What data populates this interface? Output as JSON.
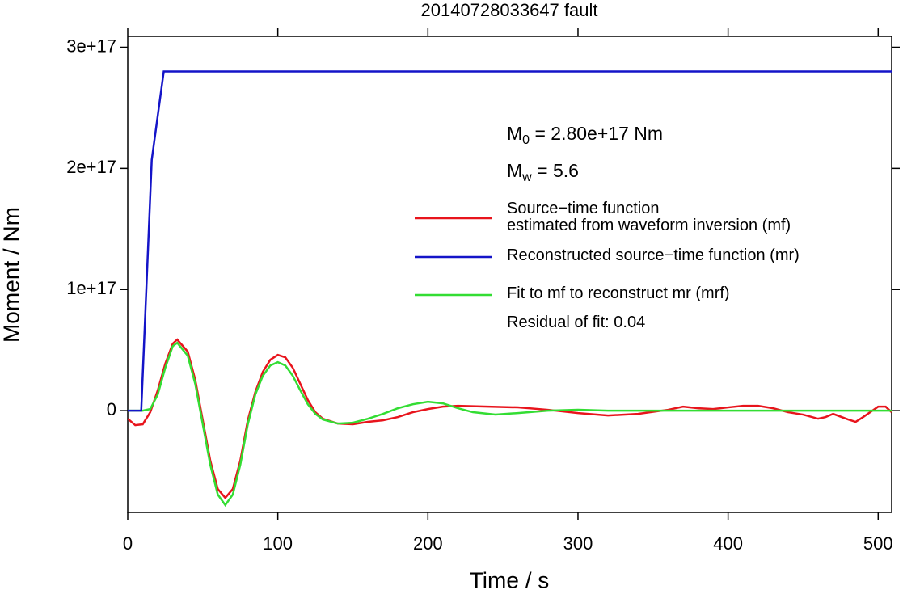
{
  "chart_data": {
    "type": "line",
    "title": "20140728033647 fault",
    "x_label": "Time / s",
    "y_label": "Moment / Nm",
    "xlim": [
      0,
      509
    ],
    "xticks": [
      0,
      100,
      200,
      300,
      400,
      500
    ],
    "ylim": [
      -8.4e+16,
      3.09e+17
    ],
    "yticks": [
      0,
      {
        "value": 1e+17,
        "label": "1e+17"
      },
      {
        "value": 2e+17,
        "label": "2e+17"
      },
      {
        "value": 3e+17,
        "label": "3e+17"
      }
    ],
    "legend": "right",
    "annotations": [
      {
        "parts": [
          "M",
          "0",
          " = 2.80e+17 Nm"
        ]
      },
      {
        "parts": [
          "M",
          "w",
          " = 5.6"
        ]
      },
      {
        "parts": [
          "Residual of fit: 0.04"
        ]
      }
    ],
    "series": [
      {
        "name": "Source−time function\nestimated from waveform inversion (mf)",
        "color": "#e8141c",
        "x": [
          0,
          5,
          10,
          15,
          20,
          25,
          30,
          33,
          40,
          45,
          50,
          55,
          60,
          65,
          70,
          75,
          80,
          85,
          90,
          95,
          100,
          105,
          110,
          115,
          120,
          125,
          130,
          140,
          150,
          160,
          170,
          180,
          190,
          200,
          210,
          220,
          240,
          260,
          280,
          300,
          320,
          340,
          360,
          370,
          380,
          390,
          400,
          410,
          420,
          430,
          440,
          450,
          460,
          465,
          470,
          480,
          485,
          490,
          500,
          505,
          509
        ],
        "values": [
          -6700000000000000.0,
          -1.2e+16,
          -1.13e+16,
          -1300000000000000.0,
          1.67e+16,
          3.87e+16,
          5.53e+16,
          5.87e+16,
          4.87e+16,
          2.53e+16,
          -8000000000000000.0,
          -4.13e+16,
          -6.47e+16,
          -7.2e+16,
          -6.47e+16,
          -4.13e+16,
          -8000000000000000.0,
          1.53e+16,
          3.2e+16,
          4.2e+16,
          4.6e+16,
          4.4e+16,
          3.53e+16,
          2.2e+16,
          8700000000000000.0,
          -1300000000000000.0,
          -6700000000000000.0,
          -1.07e+16,
          -1.13e+16,
          -9300000000000000.0,
          -8000000000000000.0,
          -5300000000000000.0,
          -1300000000000000.0,
          1300000000000000.0,
          3300000000000000.0,
          4000000000000000.0,
          3300000000000000.0,
          2700000000000000.0,
          700000000000000.0,
          -2000000000000000.0,
          -4000000000000000.0,
          -2700000000000000.0,
          700000000000000.0,
          3300000000000000.0,
          2000000000000000.0,
          1300000000000000.0,
          2700000000000000.0,
          4000000000000000.0,
          4000000000000000.0,
          2000000000000000.0,
          -1300000000000000.0,
          -3300000000000000.0,
          -6700000000000000.0,
          -5300000000000000.0,
          -2700000000000000.0,
          -7300000000000000.0,
          -9300000000000000.0,
          -5300000000000000.0,
          3300000000000000.0,
          3300000000000000.0,
          -1300000000000000.0
        ]
      },
      {
        "name": "Reconstructed source−time function (mr)",
        "color": "#1414c8",
        "x": [
          0,
          9,
          16,
          24,
          509
        ],
        "values": [
          0,
          0,
          2.07e+17,
          2.8e+17,
          2.8e+17
        ]
      },
      {
        "name": "Fit to mf to reconstruct mr (mrf)",
        "color": "#33dd33",
        "x": [
          0,
          10,
          15,
          20,
          25,
          30,
          33,
          40,
          45,
          50,
          55,
          60,
          65,
          70,
          75,
          80,
          85,
          90,
          95,
          100,
          105,
          110,
          115,
          120,
          125,
          130,
          140,
          150,
          160,
          170,
          180,
          190,
          200,
          210,
          220,
          230,
          245,
          260,
          280,
          300,
          320,
          340,
          509
        ],
        "values": [
          0,
          0,
          1300000000000000.0,
          1.33e+16,
          3.53e+16,
          5.33e+16,
          5.6e+16,
          4.53e+16,
          2.2e+16,
          -1.13e+16,
          -4.47e+16,
          -6.93e+16,
          -7.8e+16,
          -6.93e+16,
          -4.47e+16,
          -1.13e+16,
          1.33e+16,
          2.87e+16,
          3.73e+16,
          4e+16,
          3.73e+16,
          2.87e+16,
          1.67e+16,
          5300000000000000.0,
          -2700000000000000.0,
          -7300000000000000.0,
          -1.07e+16,
          -1e+16,
          -6700000000000000.0,
          -2700000000000000.0,
          2000000000000000.0,
          5300000000000000.0,
          7300000000000000.0,
          6000000000000000.0,
          2000000000000000.0,
          -1300000000000000.0,
          -3300000000000000.0,
          -2000000000000000.0,
          0,
          700000000000000.0,
          0,
          0,
          0
        ]
      }
    ]
  }
}
